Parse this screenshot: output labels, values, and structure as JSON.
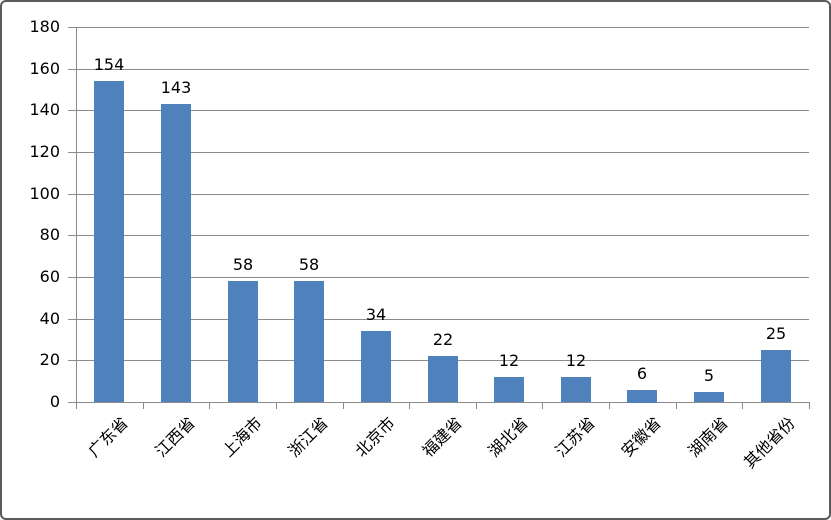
{
  "chart_data": {
    "type": "bar",
    "categories": [
      "广东省",
      "江西省",
      "上海市",
      "浙江省",
      "北京市",
      "福建省",
      "湖北省",
      "江苏省",
      "安徽省",
      "湖南省",
      "其他省份"
    ],
    "values": [
      154,
      143,
      58,
      58,
      34,
      22,
      12,
      12,
      6,
      5,
      25
    ],
    "data_labels": [
      154,
      143,
      58,
      58,
      34,
      22,
      12,
      12,
      6,
      5,
      25
    ],
    "title": "",
    "xlabel": "",
    "ylabel": "",
    "ylim": [
      0,
      180
    ],
    "ytick_interval": 20,
    "ytick_labels": [
      "0",
      "20",
      "40",
      "60",
      "80",
      "100",
      "120",
      "140",
      "160",
      "180"
    ],
    "grid": true,
    "legend_position": "none",
    "bar_color": "#4F81BD",
    "gridline_color": "#8A8A8A",
    "axis_color": "#8A8A8A",
    "label_color": "#000000",
    "background_color": "#FFFFFF",
    "frame_border_color": "#5A5A5A"
  }
}
